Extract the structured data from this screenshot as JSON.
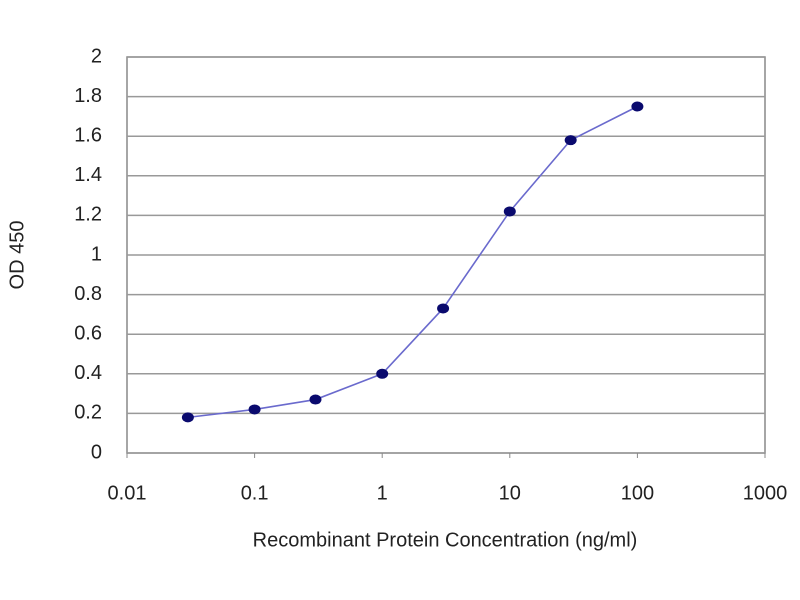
{
  "chart_data": {
    "type": "line",
    "xlabel": "Recombinant Protein Concentration (ng/ml)",
    "ylabel": "OD 450",
    "x": [
      0.03,
      0.1,
      0.3,
      1,
      3,
      10,
      30,
      100
    ],
    "values": [
      0.18,
      0.22,
      0.27,
      0.4,
      0.73,
      1.22,
      1.58,
      1.75
    ],
    "color": "#6a6acd",
    "marker_color": "#0a0a6e",
    "xlog": true,
    "xlim": [
      0.01,
      1000
    ],
    "xticks": [
      0.01,
      0.1,
      1,
      10,
      100,
      1000
    ],
    "ylim": [
      0,
      2
    ],
    "yticks": [
      0,
      0.2,
      0.4,
      0.6,
      0.8,
      1,
      1.2,
      1.4,
      1.6,
      1.8,
      2
    ],
    "grid": true
  }
}
